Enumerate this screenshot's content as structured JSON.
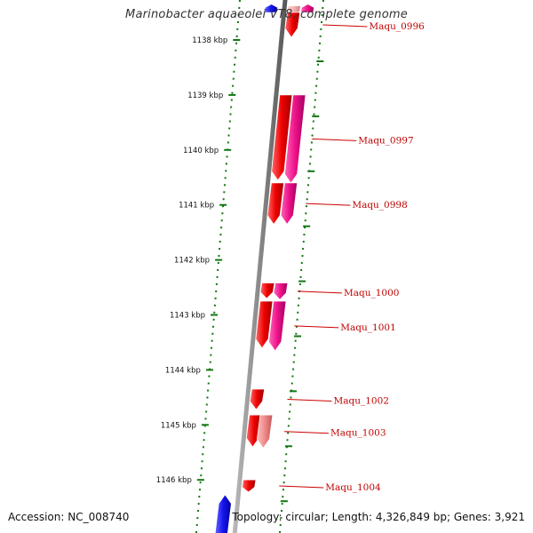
{
  "title": "Marinobacter aquaeolei VT8, complete genome",
  "footer": {
    "accession": "Accession: NC_008740",
    "summary": "Topology: circular; Length: 4,326,849 bp; Genes: 3,921"
  },
  "ruler": {
    "ticks": [
      {
        "kbp": 1138,
        "label": "1138 kbp"
      },
      {
        "kbp": 1139,
        "label": "1139 kbp"
      },
      {
        "kbp": 1140,
        "label": "1140 kbp"
      },
      {
        "kbp": 1141,
        "label": "1141 kbp"
      },
      {
        "kbp": 1142,
        "label": "1142 kbp"
      },
      {
        "kbp": 1143,
        "label": "1143 kbp"
      },
      {
        "kbp": 1144,
        "label": "1144 kbp"
      },
      {
        "kbp": 1145,
        "label": "1145 kbp"
      },
      {
        "kbp": 1146,
        "label": "1146 kbp"
      }
    ]
  },
  "colors": {
    "backbone": "#888888",
    "tick": "#117711",
    "label": "#cc0000",
    "gene_red": "#ee0000",
    "gene_magenta": "#ee1188",
    "gene_pink": "#f08a8a",
    "gene_light_pink": "#f7b0b0",
    "gene_blue": "#1515ee"
  },
  "genes": [
    {
      "label": "",
      "start": 1137.35,
      "end": 1137.5,
      "track": "magenta",
      "direction": "reverse"
    },
    {
      "label": "",
      "start": 1137.35,
      "end": 1137.5,
      "track": "blue",
      "direction": "reverse"
    },
    {
      "label": "",
      "start": 1137.38,
      "end": 1137.55,
      "track": "light_pink",
      "direction": "forward"
    },
    {
      "label": "Maqu_0996",
      "start": 1137.5,
      "end": 1137.95,
      "track": "red",
      "direction": "forward"
    },
    {
      "label": "Maqu_0997",
      "start": 1139.0,
      "end": 1140.55,
      "track": "red",
      "direction": "forward"
    },
    {
      "label": "Maqu_0997",
      "start": 1139.0,
      "end": 1140.6,
      "track": "magenta",
      "direction": "forward",
      "labeled": true
    },
    {
      "label": "Maqu_0998",
      "start": 1140.6,
      "end": 1141.35,
      "track": "red",
      "direction": "forward"
    },
    {
      "label": "Maqu_0998",
      "start": 1140.6,
      "end": 1141.35,
      "track": "magenta",
      "direction": "forward",
      "labeled": true
    },
    {
      "label": "",
      "start": 1142.42,
      "end": 1142.7,
      "track": "red",
      "direction": "forward"
    },
    {
      "label": "Maqu_1000",
      "start": 1142.42,
      "end": 1142.72,
      "track": "magenta",
      "direction": "forward",
      "labeled": true
    },
    {
      "label": "",
      "start": 1142.75,
      "end": 1143.6,
      "track": "red",
      "direction": "forward"
    },
    {
      "label": "Maqu_1001",
      "start": 1142.75,
      "end": 1143.65,
      "track": "magenta",
      "direction": "forward",
      "labeled": true
    },
    {
      "label": "Maqu_1002",
      "start": 1144.35,
      "end": 1144.72,
      "track": "red",
      "direction": "forward",
      "labeled": true
    },
    {
      "label": "",
      "start": 1144.82,
      "end": 1145.4,
      "track": "red",
      "direction": "forward"
    },
    {
      "label": "Maqu_1003",
      "start": 1144.82,
      "end": 1145.42,
      "track": "pink",
      "direction": "forward",
      "labeled": true
    },
    {
      "label": "Maqu_1004",
      "start": 1146.0,
      "end": 1146.22,
      "track": "red",
      "direction": "forward",
      "labeled": true
    },
    {
      "label": "",
      "start": 1146.27,
      "end": 1147.0,
      "track": "blue",
      "direction": "reverse"
    }
  ]
}
